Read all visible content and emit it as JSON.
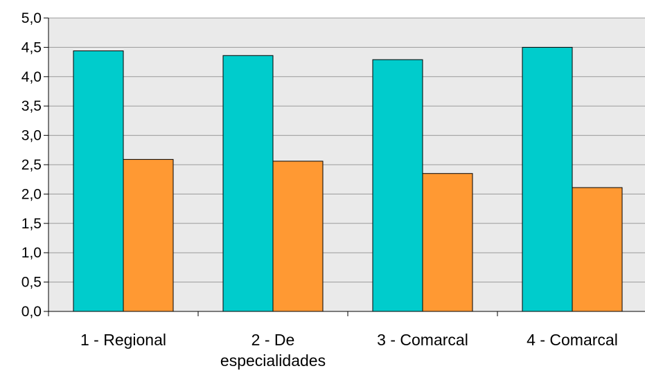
{
  "chart_data": {
    "type": "bar",
    "title": "",
    "xlabel": "",
    "ylabel": "",
    "categories": [
      [
        "1 - Regional"
      ],
      [
        "2 - De",
        "especialidades"
      ],
      [
        "3 - Comarcal"
      ],
      [
        "4 - Comarcal"
      ]
    ],
    "series": [
      {
        "values": [
          4.44,
          4.36,
          4.29,
          4.5
        ],
        "color": "#00CCCC"
      },
      {
        "values": [
          2.59,
          2.56,
          2.35,
          2.11
        ],
        "color": "#FF9933"
      }
    ],
    "ylim": [
      0,
      5
    ],
    "yticks": [
      "0,0",
      "0,5",
      "1,0",
      "1,5",
      "2,0",
      "2,5",
      "3,0",
      "3,5",
      "4,0",
      "4,5",
      "5,0"
    ],
    "ytick_values": [
      0,
      0.5,
      1,
      1.5,
      2,
      2.5,
      3,
      3.5,
      4,
      4.5,
      5
    ],
    "grid": true,
    "plot_background": "#EAEAEA",
    "gridline_color": "#999999"
  }
}
